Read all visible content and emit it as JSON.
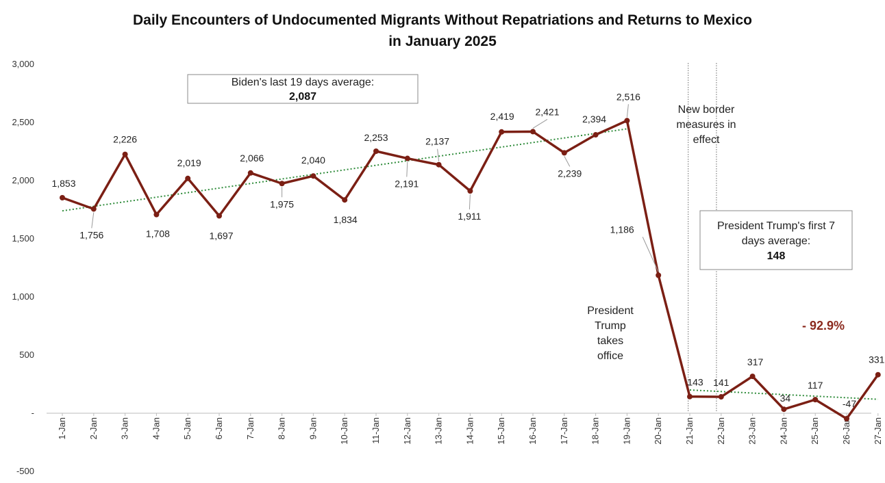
{
  "chart_data": {
    "type": "line",
    "title_lines": [
      "Daily Encounters of Undocumented Migrants Without Repatriations and Returns to Mexico",
      "in January 2025"
    ],
    "xlabel": "",
    "ylabel": "",
    "categories": [
      "1-Jan",
      "2-Jan",
      "3-Jan",
      "4-Jan",
      "5-Jan",
      "6-Jan",
      "7-Jan",
      "8-Jan",
      "9-Jan",
      "10-Jan",
      "11-Jan",
      "12-Jan",
      "13-Jan",
      "14-Jan",
      "15-Jan",
      "16-Jan",
      "17-Jan",
      "18-Jan",
      "19-Jan",
      "20-Jan",
      "21-Jan",
      "22-Jan",
      "23-Jan",
      "24-Jan",
      "25-Jan",
      "26-Jan",
      "27-Jan"
    ],
    "series": [
      {
        "name": "Daily encounters",
        "color": "#7b1f14",
        "values": [
          1853,
          1756,
          2226,
          1708,
          2019,
          1697,
          2066,
          1975,
          2040,
          1834,
          2253,
          2191,
          2137,
          1911,
          2419,
          2421,
          2239,
          2394,
          2516,
          1186,
          143,
          141,
          317,
          34,
          117,
          -47,
          331
        ]
      }
    ],
    "data_labels": [
      "1,853",
      "1,756",
      "2,226",
      "1,708",
      "2,019",
      "1,697",
      "2,066",
      "1,975",
      "2,040",
      "1,834",
      "2,253",
      "2,191",
      "2,137",
      "1,911",
      "2,419",
      "2,421",
      "2,239",
      "2,394",
      "2,516",
      "1,186",
      "143",
      "141",
      "317",
      "34",
      "117",
      "-47",
      "331"
    ],
    "y_ticks": [
      3000,
      2500,
      2000,
      1500,
      1000,
      500,
      0,
      -500
    ],
    "y_tick_labels": [
      "3,000",
      "2,500",
      "2,000",
      "1,500",
      "1,000",
      "500",
      "-",
      "-500"
    ],
    "ylim": [
      -500,
      3000
    ],
    "grid": false,
    "trendlines": [
      {
        "name": "Biden trend",
        "color": "#2e8b3a",
        "from_index": 0,
        "to_index": 18,
        "start_value": 1740,
        "end_value": 2445
      },
      {
        "name": "Trump trend",
        "color": "#2e8b3a",
        "from_index": 20,
        "to_index": 26,
        "start_value": 200,
        "end_value": 120
      }
    ],
    "vertical_markers": [
      {
        "name": "President Trump takes office",
        "index": 19.95
      },
      {
        "name": "New border measures in effect",
        "index": 20.85
      }
    ],
    "annotations": {
      "biden_box_line1": "Biden's last 19 days average:",
      "biden_box_line2": "2,087",
      "trump_box_line1": "President Trump's first 7",
      "trump_box_line2": "days average:",
      "trump_box_line3": "148",
      "takes_office_lines": [
        "President",
        "Trump",
        "takes",
        "office"
      ],
      "border_lines": [
        "New border",
        "measures in",
        "effect"
      ],
      "percent_change": "- 92.9%"
    }
  }
}
